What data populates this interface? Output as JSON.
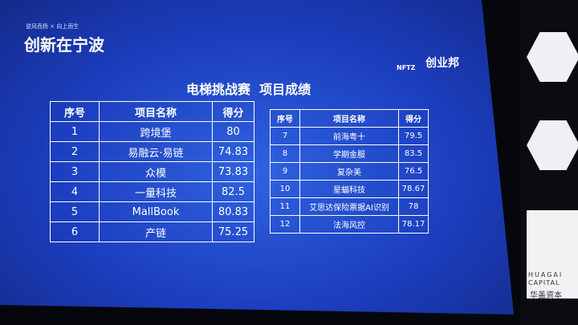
{
  "header": {
    "tagline": "逆风而扬 × 向上而生",
    "brand": "创新在宁波",
    "logo_left": "NFTZ",
    "logo_right": "创业邦",
    "title": "电梯挑战赛  项目成绩"
  },
  "tables": [
    {
      "columns": [
        "序号",
        "项目名称",
        "得分"
      ],
      "rows": [
        [
          1,
          "跨境堡",
          80
        ],
        [
          2,
          "易融云·易链",
          74.83
        ],
        [
          3,
          "众模",
          73.83
        ],
        [
          4,
          "一量科技",
          82.5
        ],
        [
          5,
          "MallBook",
          80.83
        ],
        [
          6,
          "产链",
          75.25
        ]
      ]
    },
    {
      "columns": [
        "序号",
        "项目名称",
        "得分"
      ],
      "rows": [
        [
          7,
          "前海粤十",
          79.5
        ],
        [
          8,
          "学期金服",
          83.5
        ],
        [
          9,
          "复杂美",
          76.5
        ],
        [
          10,
          "星蝠科技",
          78.67
        ],
        [
          11,
          "艾思达保险票据AI识别",
          78
        ],
        [
          12,
          "法海风控",
          78.17
        ]
      ]
    }
  ],
  "sponsor": {
    "line1": "HUAGAI",
    "line2": "CAPITAL",
    "line3": "华盖资本"
  }
}
